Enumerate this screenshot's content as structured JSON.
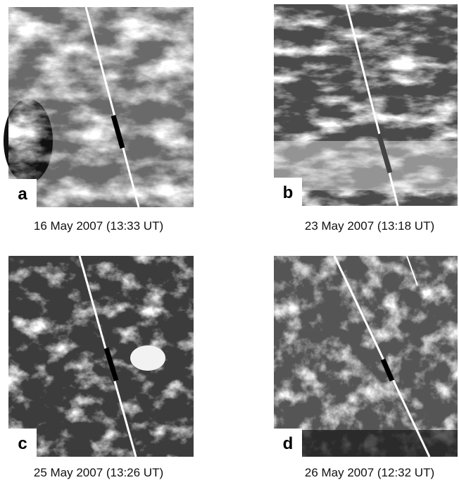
{
  "panels": [
    {
      "label": "a",
      "caption": "16 May 2007 (13:33 UT)"
    },
    {
      "label": "b",
      "caption": "23 May 2007 (13:18 UT)"
    },
    {
      "label": "c",
      "caption": "25 May 2007 (13:26 UT)"
    },
    {
      "label": "d",
      "caption": "26 May 2007 (12:32 UT)"
    }
  ]
}
